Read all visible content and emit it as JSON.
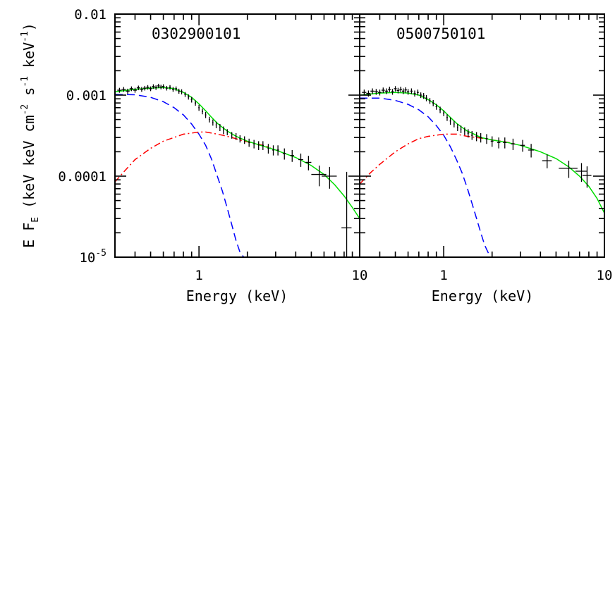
{
  "chart_data": [
    {
      "type": "scatter",
      "title": "0302900101",
      "xlabel": "Energy (keV)",
      "ylabel": "E F_E (keV keV cm^-2 s^-1 keV^-1)",
      "ylabel_parts": {
        "pre": "E F",
        "sub": "E",
        "mid": " (keV keV cm",
        "sup1": "-2",
        "mid2": " s",
        "sup2": "-1",
        "end": " keV",
        "sup3": "-1",
        "close": ")"
      },
      "x_scale": "log",
      "y_scale": "log",
      "xlim": [
        0.3,
        10
      ],
      "ylim": [
        1e-05,
        0.01
      ],
      "x_tick_labels": [
        {
          "value": 1,
          "label": "1"
        },
        {
          "value": 10,
          "label": "10"
        }
      ],
      "y_tick_labels": [
        {
          "value": 0.01,
          "label": "0.01"
        },
        {
          "value": 0.001,
          "label": "0.001"
        },
        {
          "value": 0.0001,
          "label": "0.0001"
        },
        {
          "value": 1e-05,
          "label": "10",
          "sup": "-5"
        }
      ],
      "series": [
        {
          "style": "errorbar",
          "color": "#000000",
          "points": [
            [
              0.32,
              0.00115,
              0.01,
              8e-05
            ],
            [
              0.34,
              0.00118,
              0.01,
              8e-05
            ],
            [
              0.36,
              0.00112,
              0.01,
              8e-05
            ],
            [
              0.38,
              0.0012,
              0.01,
              8e-05
            ],
            [
              0.4,
              0.00115,
              0.01,
              8e-05
            ],
            [
              0.42,
              0.00123,
              0.01,
              8e-05
            ],
            [
              0.44,
              0.00118,
              0.01,
              8e-05
            ],
            [
              0.46,
              0.00122,
              0.01,
              8e-05
            ],
            [
              0.48,
              0.00125,
              0.01,
              8e-05
            ],
            [
              0.5,
              0.0012,
              0.01,
              8e-05
            ],
            [
              0.52,
              0.00128,
              0.01,
              8e-05
            ],
            [
              0.54,
              0.00124,
              0.01,
              8e-05
            ],
            [
              0.56,
              0.0013,
              0.01,
              8e-05
            ],
            [
              0.58,
              0.00126,
              0.01,
              8e-05
            ],
            [
              0.6,
              0.00128,
              0.01,
              8e-05
            ],
            [
              0.63,
              0.00122,
              0.01,
              8e-05
            ],
            [
              0.66,
              0.00125,
              0.01,
              8e-05
            ],
            [
              0.69,
              0.00118,
              0.01,
              8e-05
            ],
            [
              0.72,
              0.0012,
              0.01,
              8e-05
            ],
            [
              0.75,
              0.00112,
              0.01,
              8e-05
            ],
            [
              0.78,
              0.0011,
              0.01,
              8e-05
            ],
            [
              0.82,
              0.00102,
              0.01,
              7e-05
            ],
            [
              0.86,
              0.00095,
              0.01,
              7e-05
            ],
            [
              0.9,
              0.00088,
              0.01,
              7e-05
            ],
            [
              0.95,
              0.0008,
              0.01,
              6e-05
            ],
            [
              1.0,
              0.0007,
              0.01,
              6e-05
            ],
            [
              1.05,
              0.00063,
              0.01,
              5e-05
            ],
            [
              1.1,
              0.00057,
              0.01,
              5e-05
            ],
            [
              1.16,
              0.0005,
              0.01,
              4e-05
            ],
            [
              1.22,
              0.00046,
              0.01,
              4e-05
            ],
            [
              1.28,
              0.00043,
              0.01,
              4e-05
            ],
            [
              1.35,
              0.0004,
              0.01,
              4e-05
            ],
            [
              1.42,
              0.00037,
              0.01,
              4e-05
            ],
            [
              1.5,
              0.00035,
              0.01,
              3e-05
            ],
            [
              1.6,
              0.00032,
              0.01,
              3e-05
            ],
            [
              1.7,
              0.00031,
              0.01,
              3e-05
            ],
            [
              1.8,
              0.00029,
              0.02,
              3e-05
            ],
            [
              1.92,
              0.00028,
              0.02,
              3e-05
            ],
            [
              2.05,
              0.00026,
              0.02,
              3e-05
            ],
            [
              2.2,
              0.00025,
              0.02,
              3e-05
            ],
            [
              2.35,
              0.00024,
              0.02,
              3e-05
            ],
            [
              2.5,
              0.00024,
              0.03,
              3e-05
            ],
            [
              2.7,
              0.00022,
              0.03,
              3e-05
            ],
            [
              2.9,
              0.00021,
              0.04,
              3e-05
            ],
            [
              3.1,
              0.00021,
              0.05,
              3e-05
            ],
            [
              3.4,
              0.00019,
              0.08,
              3e-05
            ],
            [
              3.8,
              0.00018,
              0.1,
              3e-05
            ],
            [
              4.3,
              0.00016,
              0.15,
              3e-05
            ],
            [
              4.8,
              0.000148,
              0.2,
              3e-05
            ],
            [
              5.6,
              0.000105,
              0.6,
              3e-05
            ],
            [
              6.5,
              0.0001,
              0.7,
              3e-05
            ],
            [
              8.3,
              2.3e-05,
              0.6,
              9e-05
            ]
          ]
        },
        {
          "style": "dashed",
          "color": "#0000ff",
          "x": [
            0.3,
            0.4,
            0.5,
            0.6,
            0.7,
            0.8,
            0.9,
            1.0,
            1.1,
            1.2,
            1.3,
            1.4,
            1.5,
            1.6,
            1.7,
            1.8,
            1.9
          ],
          "y": [
            0.00102,
            0.00101,
            0.00094,
            0.00083,
            0.0007,
            0.00057,
            0.00044,
            0.00033,
            0.00024,
            0.00016,
            0.0001,
            6.5e-05,
            4e-05,
            2.5e-05,
            1.6e-05,
            1.15e-05,
            1e-05
          ]
        },
        {
          "style": "dashdot",
          "color": "#ff0000",
          "x": [
            0.3,
            0.35,
            0.4,
            0.5,
            0.6,
            0.7,
            0.8,
            0.9,
            1.0,
            1.1,
            1.2,
            1.4,
            1.6,
            1.8,
            2.0,
            2.4,
            2.8
          ],
          "y": [
            8.5e-05,
            0.00012,
            0.00016,
            0.00022,
            0.00027,
            0.0003,
            0.00033,
            0.00034,
            0.00035,
            0.00035,
            0.00034,
            0.00032,
            0.0003,
            0.00028,
            0.000265,
            0.000245,
            0.000225
          ]
        },
        {
          "style": "solid",
          "color": "#00dd00",
          "x": [
            0.3,
            0.4,
            0.5,
            0.6,
            0.7,
            0.8,
            0.9,
            1.0,
            1.1,
            1.2,
            1.3,
            1.4,
            1.5,
            1.7,
            2.0,
            2.5,
            3.0,
            4.0,
            5.0,
            6.0,
            7.0,
            8.0,
            9.0,
            10.0
          ],
          "y": [
            0.0011,
            0.00118,
            0.00122,
            0.00124,
            0.0012,
            0.00108,
            0.00094,
            0.00078,
            0.00064,
            0.00053,
            0.00045,
            0.0004,
            0.00036,
            0.00031,
            0.00027,
            0.000235,
            0.00021,
            0.00017,
            0.000135,
            0.000105,
            7.8e-05,
            5.7e-05,
            4.1e-05,
            3e-05
          ]
        }
      ]
    },
    {
      "type": "scatter",
      "title": "0500750101",
      "xlabel": "Energy (keV)",
      "x_scale": "log",
      "y_scale": "log",
      "xlim": [
        0.3,
        10
      ],
      "ylim": [
        1e-05,
        0.01
      ],
      "x_tick_labels": [
        {
          "value": 1,
          "label": "1"
        },
        {
          "value": 10,
          "label": "10"
        }
      ],
      "series": [
        {
          "style": "errorbar",
          "color": "#000000",
          "points": [
            [
              0.32,
              0.00108,
              0.01,
              9e-05
            ],
            [
              0.34,
              0.00105,
              0.01,
              9e-05
            ],
            [
              0.36,
              0.00112,
              0.01,
              9e-05
            ],
            [
              0.38,
              0.0011,
              0.01,
              9e-05
            ],
            [
              0.4,
              0.00108,
              0.01,
              9e-05
            ],
            [
              0.42,
              0.00115,
              0.01,
              9e-05
            ],
            [
              0.44,
              0.00112,
              0.01,
              9e-05
            ],
            [
              0.46,
              0.00118,
              0.01,
              9e-05
            ],
            [
              0.48,
              0.0011,
              0.01,
              9e-05
            ],
            [
              0.5,
              0.0012,
              0.01,
              9e-05
            ],
            [
              0.52,
              0.00114,
              0.01,
              9e-05
            ],
            [
              0.54,
              0.00118,
              0.01,
              9e-05
            ],
            [
              0.56,
              0.00112,
              0.01,
              9e-05
            ],
            [
              0.58,
              0.00116,
              0.01,
              9e-05
            ],
            [
              0.6,
              0.0011,
              0.01,
              9e-05
            ],
            [
              0.63,
              0.00112,
              0.01,
              9e-05
            ],
            [
              0.66,
              0.00105,
              0.01,
              9e-05
            ],
            [
              0.69,
              0.00108,
              0.01,
              9e-05
            ],
            [
              0.72,
              0.001,
              0.01,
              8e-05
            ],
            [
              0.75,
              0.00098,
              0.01,
              8e-05
            ],
            [
              0.78,
              0.00092,
              0.01,
              8e-05
            ],
            [
              0.82,
              0.00085,
              0.01,
              7e-05
            ],
            [
              0.86,
              0.0008,
              0.01,
              7e-05
            ],
            [
              0.9,
              0.00072,
              0.01,
              6e-05
            ],
            [
              0.95,
              0.00066,
              0.01,
              6e-05
            ],
            [
              1.0,
              0.0006,
              0.01,
              5e-05
            ],
            [
              1.05,
              0.00053,
              0.01,
              5e-05
            ],
            [
              1.1,
              0.00048,
              0.01,
              5e-05
            ],
            [
              1.16,
              0.00044,
              0.01,
              4e-05
            ],
            [
              1.22,
              0.0004,
              0.01,
              4e-05
            ],
            [
              1.28,
              0.00038,
              0.01,
              4e-05
            ],
            [
              1.35,
              0.00036,
              0.01,
              4e-05
            ],
            [
              1.42,
              0.00034,
              0.02,
              4e-05
            ],
            [
              1.5,
              0.00032,
              0.02,
              4e-05
            ],
            [
              1.6,
              0.00031,
              0.02,
              4e-05
            ],
            [
              1.7,
              0.0003,
              0.03,
              4e-05
            ],
            [
              1.85,
              0.00029,
              0.03,
              4e-05
            ],
            [
              2.0,
              0.00027,
              0.04,
              4e-05
            ],
            [
              2.2,
              0.00026,
              0.05,
              4e-05
            ],
            [
              2.4,
              0.00026,
              0.06,
              4e-05
            ],
            [
              2.7,
              0.00025,
              0.08,
              4e-05
            ],
            [
              3.1,
              0.00024,
              0.1,
              4e-05
            ],
            [
              3.5,
              0.00021,
              0.15,
              4e-05
            ],
            [
              4.4,
              0.000155,
              0.3,
              3e-05
            ],
            [
              6.0,
              0.000125,
              0.8,
              3e-05
            ],
            [
              7.2,
              0.000115,
              0.6,
              3e-05
            ],
            [
              7.8,
              0.000102,
              0.5,
              3e-05
            ]
          ]
        },
        {
          "style": "dashed",
          "color": "#0000ff",
          "x": [
            0.3,
            0.4,
            0.5,
            0.6,
            0.7,
            0.8,
            0.9,
            1.0,
            1.1,
            1.2,
            1.3,
            1.4,
            1.5,
            1.6,
            1.7,
            1.8,
            1.95
          ],
          "y": [
            0.00092,
            0.00092,
            0.00086,
            0.00077,
            0.00066,
            0.00054,
            0.00042,
            0.00032,
            0.00023,
            0.00016,
            0.00011,
            7.2e-05,
            4.6e-05,
            3e-05,
            2e-05,
            1.4e-05,
            1e-05
          ]
        },
        {
          "style": "dashdot",
          "color": "#ff0000",
          "x": [
            0.3,
            0.35,
            0.4,
            0.5,
            0.6,
            0.7,
            0.8,
            0.9,
            1.0,
            1.1,
            1.2,
            1.4,
            1.6,
            1.8,
            2.0,
            2.4,
            2.8
          ],
          "y": [
            8e-05,
            0.00011,
            0.00014,
            0.0002,
            0.00025,
            0.00029,
            0.00031,
            0.00032,
            0.00033,
            0.00033,
            0.00033,
            0.00031,
            0.0003,
            0.00029,
            0.00028,
            0.000265,
            0.00025
          ]
        },
        {
          "style": "solid",
          "color": "#00dd00",
          "x": [
            0.3,
            0.4,
            0.5,
            0.6,
            0.7,
            0.8,
            0.9,
            1.0,
            1.1,
            1.2,
            1.3,
            1.4,
            1.5,
            1.7,
            2.0,
            2.5,
            3.0,
            4.0,
            5.0,
            6.0,
            7.0,
            8.0,
            9.0,
            10.0
          ],
          "y": [
            0.001,
            0.00106,
            0.00108,
            0.00106,
            0.001,
            0.00088,
            0.00076,
            0.00064,
            0.00053,
            0.00045,
            0.0004,
            0.00036,
            0.00034,
            0.0003,
            0.00028,
            0.00026,
            0.00024,
            0.0002,
            0.000165,
            0.00013,
            0.0001,
            7.5e-05,
            5.3e-05,
            3.5e-05
          ]
        }
      ]
    }
  ]
}
